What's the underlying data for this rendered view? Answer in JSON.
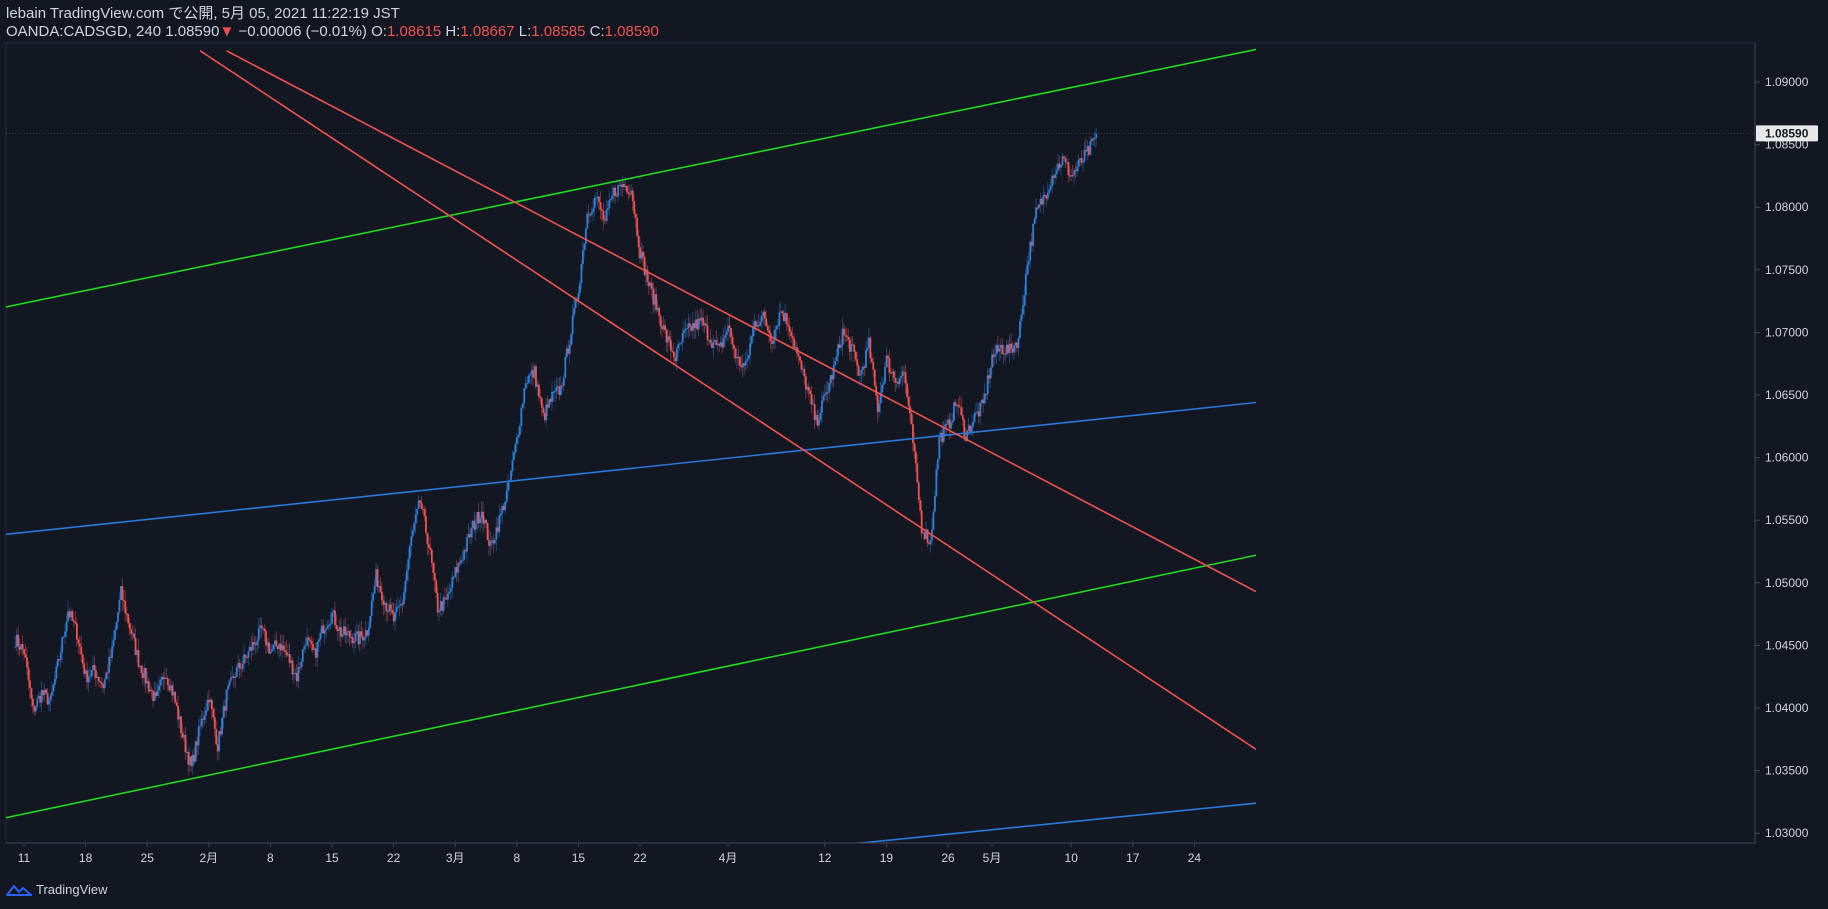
{
  "header": {
    "line1": "lebain TradingView.com で公開, 5月 05, 2021 11:22:19 JST",
    "symbol": "OANDA:CADSGD, 240",
    "last": "1.08590",
    "arrow": "▼",
    "change": "−0.00006 (−0.01%)",
    "o_label": "O:",
    "o_value": "1.08615",
    "h_label": "H:",
    "h_value": "1.08667",
    "l_label": "L:",
    "l_value": "1.08585",
    "c_label": "C:",
    "c_value": "1.08590"
  },
  "footer": {
    "brand": "TradingView",
    "logo_icon": "tradingview-logo-icon"
  },
  "colors": {
    "background": "#131722",
    "up": "#2962ff",
    "up_bright": "#2e7fd9",
    "down": "#ef5350",
    "green_line": "#1fd81f",
    "blue_line": "#2a78d8",
    "red_line": "#ef5350",
    "axis_text": "#d1d4dc",
    "grid_border": "#2a2e39"
  },
  "chart_data": {
    "type": "candlestick",
    "y_ticks": [
      "1.09000",
      "1.08500",
      "1.08000",
      "1.07500",
      "1.07000",
      "1.06500",
      "1.06000",
      "1.05500",
      "1.05000",
      "1.04500",
      "1.04000",
      "1.03500",
      "1.03000"
    ],
    "y_tick_values": [
      1.09,
      1.085,
      1.08,
      1.075,
      1.07,
      1.065,
      1.06,
      1.055,
      1.05,
      1.045,
      1.04,
      1.035,
      1.03
    ],
    "ylim": [
      1.0284,
      1.0921
    ],
    "x_ticks": [
      {
        "label": "11",
        "day": 0
      },
      {
        "label": "18",
        "day": 7
      },
      {
        "label": "25",
        "day": 14
      },
      {
        "label": "2月",
        "day": 21
      },
      {
        "label": "8",
        "day": 28
      },
      {
        "label": "15",
        "day": 35
      },
      {
        "label": "22",
        "day": 42
      },
      {
        "label": "3月",
        "day": 49
      },
      {
        "label": "8",
        "day": 56
      },
      {
        "label": "15",
        "day": 63
      },
      {
        "label": "22",
        "day": 70
      },
      {
        "label": "4月",
        "day": 80
      },
      {
        "label": "12",
        "day": 91
      },
      {
        "label": "19",
        "day": 98
      },
      {
        "label": "26",
        "day": 105
      },
      {
        "label": "5月",
        "day": 110
      },
      {
        "label": "10",
        "day": 119
      },
      {
        "label": "17",
        "day": 126
      },
      {
        "label": "24",
        "day": 133
      }
    ],
    "current_price_label": "1.08590",
    "current_price": 1.0859,
    "price_path": [
      [
        -1,
        1.0455
      ],
      [
        0,
        1.0445
      ],
      [
        1,
        1.0398
      ],
      [
        2,
        1.0412
      ],
      [
        3,
        1.0405
      ],
      [
        4,
        1.044
      ],
      [
        5,
        1.0478
      ],
      [
        6,
        1.046
      ],
      [
        7,
        1.0425
      ],
      [
        8,
        1.043
      ],
      [
        9,
        1.0418
      ],
      [
        10,
        1.0445
      ],
      [
        11,
        1.0492
      ],
      [
        12,
        1.0465
      ],
      [
        13,
        1.0438
      ],
      [
        14,
        1.042
      ],
      [
        15,
        1.0405
      ],
      [
        16,
        1.043
      ],
      [
        17,
        1.041
      ],
      [
        18,
        1.0378
      ],
      [
        19,
        1.0352
      ],
      [
        20,
        1.0385
      ],
      [
        21,
        1.041
      ],
      [
        22,
        1.037
      ],
      [
        23,
        1.041
      ],
      [
        24,
        1.0428
      ],
      [
        25,
        1.0438
      ],
      [
        26,
        1.045
      ],
      [
        27,
        1.0462
      ],
      [
        28,
        1.0445
      ],
      [
        29,
        1.0452
      ],
      [
        30,
        1.044
      ],
      [
        31,
        1.0425
      ],
      [
        32,
        1.0455
      ],
      [
        33,
        1.0442
      ],
      [
        34,
        1.0465
      ],
      [
        35,
        1.0475
      ],
      [
        36,
        1.046
      ],
      [
        37,
        1.0458
      ],
      [
        38,
        1.0455
      ],
      [
        39,
        1.0462
      ],
      [
        40,
        1.0505
      ],
      [
        41,
        1.0485
      ],
      [
        42,
        1.047
      ],
      [
        43,
        1.0485
      ],
      [
        44,
        1.0535
      ],
      [
        45,
        1.0565
      ],
      [
        46,
        1.053
      ],
      [
        47,
        1.048
      ],
      [
        48,
        1.0485
      ],
      [
        49,
        1.0508
      ],
      [
        50,
        1.0525
      ],
      [
        51,
        1.0545
      ],
      [
        52,
        1.0558
      ],
      [
        53,
        1.0528
      ],
      [
        54,
        1.055
      ],
      [
        55,
        1.0575
      ],
      [
        56,
        1.0615
      ],
      [
        57,
        1.0662
      ],
      [
        58,
        1.0668
      ],
      [
        59,
        1.0632
      ],
      [
        60,
        1.0648
      ],
      [
        61,
        1.0655
      ],
      [
        62,
        1.0695
      ],
      [
        63,
        1.0735
      ],
      [
        64,
        1.0795
      ],
      [
        65,
        1.0808
      ],
      [
        66,
        1.0788
      ],
      [
        67,
        1.0812
      ],
      [
        68,
        1.0818
      ],
      [
        69,
        1.0815
      ],
      [
        70,
        1.0765
      ],
      [
        71,
        1.0738
      ],
      [
        72,
        1.0718
      ],
      [
        73,
        1.0695
      ],
      [
        74,
        1.068
      ],
      [
        75,
        1.0698
      ],
      [
        76,
        1.0705
      ],
      [
        77,
        1.0708
      ],
      [
        78,
        1.0695
      ],
      [
        79,
        1.0685
      ],
      [
        80,
        1.0705
      ],
      [
        81,
        1.0678
      ],
      [
        82,
        1.0672
      ],
      [
        83,
        1.0708
      ],
      [
        84,
        1.0712
      ],
      [
        85,
        1.0695
      ],
      [
        86,
        1.0718
      ],
      [
        87,
        1.0705
      ],
      [
        88,
        1.0678
      ],
      [
        89,
        1.0655
      ],
      [
        90,
        1.0628
      ],
      [
        91,
        1.0648
      ],
      [
        92,
        1.067
      ],
      [
        93,
        1.07
      ],
      [
        94,
        1.0688
      ],
      [
        95,
        1.0665
      ],
      [
        96,
        1.069
      ],
      [
        97,
        1.064
      ],
      [
        98,
        1.0678
      ],
      [
        99,
        1.0662
      ],
      [
        100,
        1.0668
      ],
      [
        101,
        1.0612
      ],
      [
        102,
        1.0545
      ],
      [
        103,
        1.0532
      ],
      [
        104,
        1.0615
      ],
      [
        105,
        1.0625
      ],
      [
        106,
        1.0645
      ],
      [
        107,
        1.0618
      ],
      [
        108,
        1.0632
      ],
      [
        109,
        1.0642
      ],
      [
        110,
        1.068
      ],
      [
        111,
        1.0688
      ],
      [
        112,
        1.0685
      ],
      [
        113,
        1.0695
      ],
      [
        114,
        1.0755
      ],
      [
        115,
        1.0795
      ],
      [
        116,
        1.081
      ],
      [
        117,
        1.0828
      ],
      [
        118,
        1.0838
      ],
      [
        119,
        1.0825
      ],
      [
        120,
        1.0835
      ],
      [
        121,
        1.0845
      ],
      [
        122,
        1.0859
      ]
    ],
    "trendlines": [
      {
        "name": "green-upper",
        "color": "green_line",
        "p1": [
          -3,
          1.0719
        ],
        "p2": [
          140,
          1.0926
        ]
      },
      {
        "name": "green-lower",
        "color": "green_line",
        "p1": [
          -3,
          1.0311
        ],
        "p2": [
          140,
          1.0522
        ]
      },
      {
        "name": "blue-mid",
        "color": "blue_line",
        "p1": [
          -3,
          1.0538
        ],
        "p2": [
          140,
          1.0644
        ]
      },
      {
        "name": "blue-lower",
        "color": "blue_line",
        "p1": [
          92,
          1.029
        ],
        "p2": [
          140,
          1.0324
        ]
      },
      {
        "name": "red-upper",
        "color": "red_line",
        "p1": [
          23,
          1.0925
        ],
        "p2": [
          140,
          1.0493
        ]
      },
      {
        "name": "red-lower",
        "color": "red_line",
        "p1": [
          20,
          1.0925
        ],
        "p2": [
          140,
          1.0367
        ]
      }
    ]
  }
}
